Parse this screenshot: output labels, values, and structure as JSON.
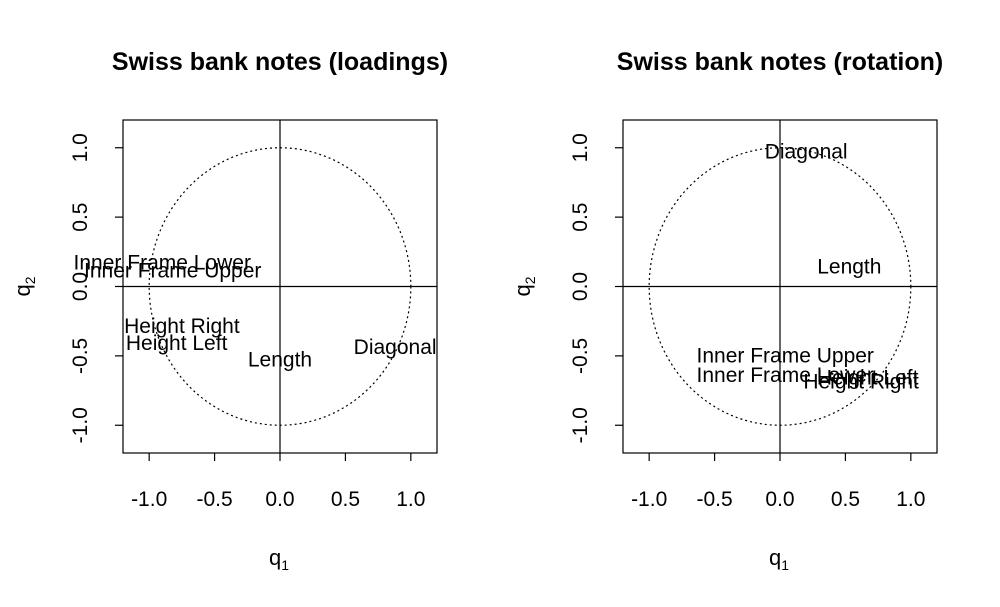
{
  "chart_data": [
    {
      "type": "scatter",
      "title": "Swiss bank notes (loadings)",
      "xlabel": "q",
      "xlabel_sub": "1",
      "ylabel": "q",
      "ylabel_sub": "2",
      "xlim": [
        -1.2,
        1.2
      ],
      "ylim": [
        -1.2,
        1.2
      ],
      "xticks": [
        "-1.0",
        "-0.5",
        "0.0",
        "0.5",
        "1.0"
      ],
      "yticks": [
        "-1.0",
        "-0.5",
        "0.0",
        "0.5",
        "1.0"
      ],
      "reference": {
        "zero_lines": true,
        "unit_circle": "dotted"
      },
      "points": [
        {
          "label": "Length",
          "x": 0.0,
          "y": -0.53
        },
        {
          "label": "Height Left",
          "x": -0.79,
          "y": -0.41
        },
        {
          "label": "Height Right",
          "x": -0.75,
          "y": -0.29
        },
        {
          "label": "Inner Frame Lower",
          "x": -0.9,
          "y": 0.17
        },
        {
          "label": "Inner Frame Upper",
          "x": -0.82,
          "y": 0.11
        },
        {
          "label": "Diagonal",
          "x": 0.88,
          "y": -0.44
        }
      ]
    },
    {
      "type": "scatter",
      "title": "Swiss bank notes (rotation)",
      "xlabel": "q",
      "xlabel_sub": "1",
      "ylabel": "q",
      "ylabel_sub": "2",
      "xlim": [
        -1.2,
        1.2
      ],
      "ylim": [
        -1.2,
        1.2
      ],
      "xticks": [
        "-1.0",
        "-0.5",
        "0.0",
        "0.5",
        "1.0"
      ],
      "yticks": [
        "-1.0",
        "-0.5",
        "0.0",
        "0.5",
        "1.0"
      ],
      "reference": {
        "zero_lines": true,
        "unit_circle": "dotted"
      },
      "points": [
        {
          "label": "Length",
          "x": 0.53,
          "y": 0.14
        },
        {
          "label": "Height Left",
          "x": 0.67,
          "y": -0.66
        },
        {
          "label": "Height Right",
          "x": 0.62,
          "y": -0.69
        },
        {
          "label": "Inner Frame Lower",
          "x": 0.04,
          "y": -0.64
        },
        {
          "label": "Inner Frame Upper",
          "x": 0.04,
          "y": -0.5
        },
        {
          "label": "Diagonal",
          "x": 0.2,
          "y": 0.97
        }
      ]
    }
  ]
}
